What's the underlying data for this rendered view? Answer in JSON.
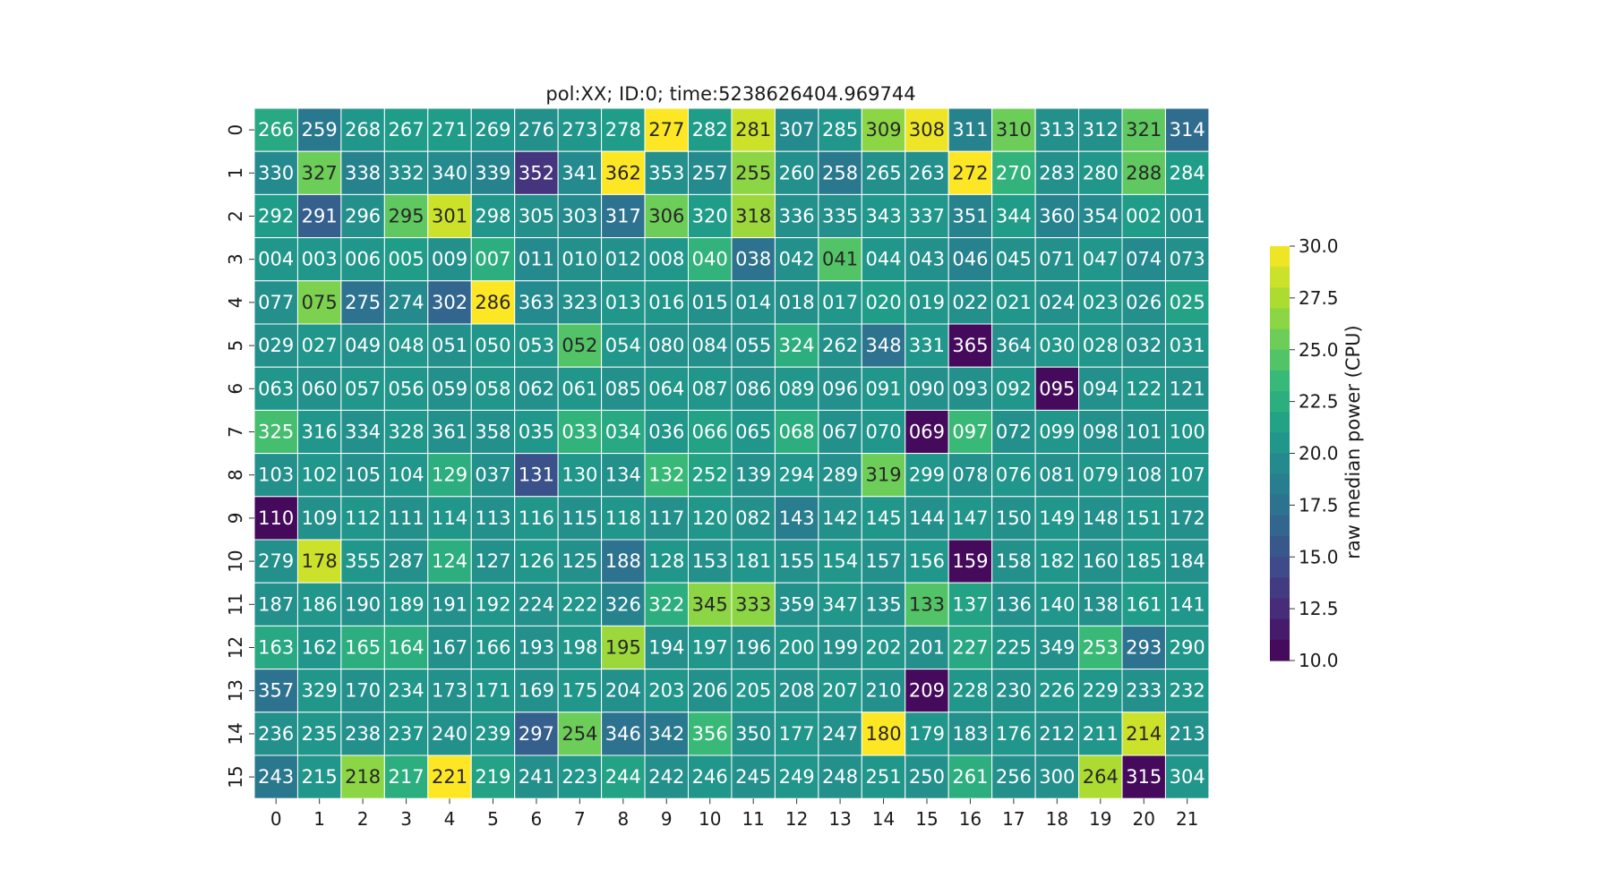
{
  "chart_data": {
    "type": "heatmap",
    "title": "pol:XX; ID:0; time:5238626404.969744",
    "xlabel": "",
    "ylabel": "",
    "x_tick_labels": [
      "0",
      "1",
      "2",
      "3",
      "4",
      "5",
      "6",
      "7",
      "8",
      "9",
      "10",
      "11",
      "12",
      "13",
      "14",
      "15",
      "16",
      "17",
      "18",
      "19",
      "20",
      "21"
    ],
    "y_tick_labels": [
      "0",
      "1",
      "2",
      "3",
      "4",
      "5",
      "6",
      "7",
      "8",
      "9",
      "10",
      "11",
      "12",
      "13",
      "14",
      "15"
    ],
    "annotations": [
      [
        "266",
        "259",
        "268",
        "267",
        "271",
        "269",
        "276",
        "273",
        "278",
        "277",
        "282",
        "281",
        "307",
        "285",
        "309",
        "308",
        "311",
        "310",
        "313",
        "312",
        "321",
        "314"
      ],
      [
        "330",
        "327",
        "338",
        "332",
        "340",
        "339",
        "352",
        "341",
        "362",
        "353",
        "257",
        "255",
        "260",
        "258",
        "265",
        "263",
        "272",
        "270",
        "283",
        "280",
        "288",
        "284"
      ],
      [
        "292",
        "291",
        "296",
        "295",
        "301",
        "298",
        "305",
        "303",
        "317",
        "306",
        "320",
        "318",
        "336",
        "335",
        "343",
        "337",
        "351",
        "344",
        "360",
        "354",
        "002",
        "001"
      ],
      [
        "004",
        "003",
        "006",
        "005",
        "009",
        "007",
        "011",
        "010",
        "012",
        "008",
        "040",
        "038",
        "042",
        "041",
        "044",
        "043",
        "046",
        "045",
        "071",
        "047",
        "074",
        "073"
      ],
      [
        "077",
        "075",
        "275",
        "274",
        "302",
        "286",
        "363",
        "323",
        "013",
        "016",
        "015",
        "014",
        "018",
        "017",
        "020",
        "019",
        "022",
        "021",
        "024",
        "023",
        "026",
        "025"
      ],
      [
        "029",
        "027",
        "049",
        "048",
        "051",
        "050",
        "053",
        "052",
        "054",
        "080",
        "084",
        "055",
        "324",
        "262",
        "348",
        "331",
        "365",
        "364",
        "030",
        "028",
        "032",
        "031"
      ],
      [
        "063",
        "060",
        "057",
        "056",
        "059",
        "058",
        "062",
        "061",
        "085",
        "064",
        "087",
        "086",
        "089",
        "096",
        "091",
        "090",
        "093",
        "092",
        "095",
        "094",
        "122",
        "121"
      ],
      [
        "325",
        "316",
        "334",
        "328",
        "361",
        "358",
        "035",
        "033",
        "034",
        "036",
        "066",
        "065",
        "068",
        "067",
        "070",
        "069",
        "097",
        "072",
        "099",
        "098",
        "101",
        "100"
      ],
      [
        "103",
        "102",
        "105",
        "104",
        "129",
        "037",
        "131",
        "130",
        "134",
        "132",
        "252",
        "139",
        "294",
        "289",
        "319",
        "299",
        "078",
        "076",
        "081",
        "079",
        "108",
        "107"
      ],
      [
        "110",
        "109",
        "112",
        "111",
        "114",
        "113",
        "116",
        "115",
        "118",
        "117",
        "120",
        "082",
        "143",
        "142",
        "145",
        "144",
        "147",
        "150",
        "149",
        "148",
        "151",
        "172"
      ],
      [
        "279",
        "178",
        "355",
        "287",
        "124",
        "127",
        "126",
        "125",
        "188",
        "128",
        "153",
        "181",
        "155",
        "154",
        "157",
        "156",
        "159",
        "158",
        "182",
        "160",
        "185",
        "184"
      ],
      [
        "187",
        "186",
        "190",
        "189",
        "191",
        "192",
        "224",
        "222",
        "326",
        "322",
        "345",
        "333",
        "359",
        "347",
        "135",
        "133",
        "137",
        "136",
        "140",
        "138",
        "161",
        "141"
      ],
      [
        "163",
        "162",
        "165",
        "164",
        "167",
        "166",
        "193",
        "198",
        "195",
        "194",
        "197",
        "196",
        "200",
        "199",
        "202",
        "201",
        "227",
        "225",
        "349",
        "253",
        "293",
        "290"
      ],
      [
        "357",
        "329",
        "170",
        "234",
        "173",
        "171",
        "169",
        "175",
        "204",
        "203",
        "206",
        "205",
        "208",
        "207",
        "210",
        "209",
        "228",
        "230",
        "226",
        "229",
        "233",
        "232"
      ],
      [
        "236",
        "235",
        "238",
        "237",
        "240",
        "239",
        "297",
        "254",
        "346",
        "342",
        "356",
        "350",
        "177",
        "247",
        "180",
        "179",
        "183",
        "176",
        "212",
        "211",
        "214",
        "213"
      ],
      [
        "243",
        "215",
        "218",
        "217",
        "221",
        "219",
        "241",
        "223",
        "244",
        "242",
        "246",
        "245",
        "249",
        "248",
        "251",
        "250",
        "261",
        "256",
        "300",
        "264",
        "315",
        "304"
      ]
    ],
    "values": [
      [
        22.0,
        18.0,
        20.5,
        21.0,
        21.0,
        20.5,
        20.0,
        20.5,
        21.0,
        30.0,
        21.0,
        28.5,
        19.5,
        20.5,
        26.5,
        29.5,
        19.0,
        25.5,
        20.0,
        20.0,
        25.0,
        17.0
      ],
      [
        19.5,
        25.5,
        19.0,
        20.0,
        19.5,
        19.0,
        13.0,
        19.5,
        30.0,
        20.0,
        19.5,
        26.5,
        20.0,
        18.0,
        20.0,
        20.0,
        30.0,
        23.0,
        20.0,
        20.5,
        25.0,
        21.0
      ],
      [
        21.0,
        16.0,
        20.0,
        25.0,
        28.5,
        20.5,
        20.0,
        19.5,
        17.5,
        25.5,
        21.0,
        27.0,
        20.0,
        20.0,
        20.5,
        20.5,
        19.0,
        21.0,
        19.0,
        19.5,
        21.0,
        20.0
      ],
      [
        20.5,
        20.5,
        20.5,
        21.0,
        20.0,
        22.5,
        19.5,
        20.0,
        20.0,
        20.5,
        23.0,
        17.5,
        20.0,
        24.5,
        20.5,
        20.0,
        19.0,
        20.0,
        20.0,
        20.5,
        19.5,
        20.0
      ],
      [
        20.0,
        26.0,
        17.5,
        19.5,
        16.5,
        30.0,
        19.5,
        20.0,
        20.5,
        20.5,
        20.0,
        20.0,
        20.0,
        20.5,
        21.0,
        20.5,
        20.0,
        20.5,
        20.0,
        20.5,
        20.0,
        21.5
      ],
      [
        20.0,
        20.5,
        20.0,
        20.5,
        20.0,
        20.5,
        20.5,
        24.5,
        20.5,
        20.0,
        20.0,
        20.0,
        22.5,
        20.0,
        17.5,
        20.5,
        10.5,
        20.0,
        20.5,
        20.5,
        20.0,
        20.5
      ],
      [
        20.5,
        20.0,
        20.5,
        20.5,
        20.0,
        20.5,
        20.0,
        20.5,
        20.0,
        20.5,
        20.5,
        20.0,
        20.5,
        20.0,
        20.5,
        20.0,
        20.0,
        20.5,
        10.5,
        20.0,
        20.5,
        20.0
      ],
      [
        24.0,
        20.5,
        20.0,
        20.5,
        20.0,
        20.0,
        20.5,
        23.0,
        22.0,
        20.5,
        21.5,
        20.5,
        22.5,
        20.0,
        20.5,
        10.5,
        23.5,
        20.0,
        20.5,
        20.0,
        20.0,
        20.5
      ],
      [
        20.0,
        20.5,
        20.0,
        20.5,
        22.5,
        20.0,
        15.0,
        20.5,
        20.0,
        23.5,
        21.5,
        20.0,
        20.5,
        20.0,
        25.5,
        20.5,
        20.0,
        20.5,
        20.0,
        20.5,
        20.0,
        20.5
      ],
      [
        10.5,
        20.0,
        20.5,
        20.0,
        20.5,
        20.0,
        20.5,
        20.0,
        20.5,
        20.0,
        20.5,
        20.0,
        18.5,
        20.0,
        20.5,
        20.0,
        20.5,
        20.0,
        20.5,
        20.0,
        20.5,
        20.0
      ],
      [
        20.0,
        28.5,
        20.5,
        20.0,
        22.5,
        20.0,
        20.5,
        20.0,
        17.5,
        20.5,
        20.0,
        20.5,
        20.0,
        20.5,
        20.0,
        20.5,
        10.5,
        20.0,
        20.5,
        20.0,
        20.5,
        20.0
      ],
      [
        20.0,
        20.5,
        20.0,
        20.5,
        20.0,
        20.5,
        20.0,
        20.5,
        19.0,
        22.5,
        26.5,
        26.5,
        20.0,
        20.5,
        20.0,
        24.5,
        21.5,
        20.0,
        20.5,
        20.0,
        21.0,
        20.5
      ],
      [
        22.0,
        20.5,
        22.5,
        22.5,
        20.0,
        20.5,
        20.0,
        20.5,
        27.0,
        20.0,
        20.5,
        20.0,
        20.5,
        20.0,
        20.5,
        20.0,
        22.0,
        20.5,
        20.0,
        23.5,
        17.5,
        20.5
      ],
      [
        17.5,
        20.5,
        20.0,
        20.5,
        20.0,
        20.5,
        20.0,
        20.5,
        20.0,
        20.5,
        20.0,
        20.5,
        20.0,
        20.5,
        20.0,
        10.5,
        20.5,
        20.0,
        20.5,
        20.5,
        20.0,
        20.5
      ],
      [
        20.0,
        20.5,
        20.0,
        20.5,
        20.0,
        20.5,
        16.0,
        25.5,
        17.5,
        18.0,
        23.5,
        20.0,
        20.5,
        20.0,
        30.0,
        20.5,
        20.0,
        20.5,
        20.0,
        20.5,
        28.5,
        20.0
      ],
      [
        18.0,
        20.5,
        26.5,
        22.5,
        30.0,
        21.5,
        20.0,
        20.5,
        21.5,
        20.0,
        20.5,
        20.0,
        20.5,
        20.0,
        20.5,
        20.0,
        22.5,
        20.0,
        20.0,
        27.5,
        10.5,
        20.5
      ]
    ],
    "colorbar": {
      "label": "raw median power (CPU)",
      "min": 10.0,
      "max": 30.0,
      "tick_labels": [
        "10.0",
        "12.5",
        "15.0",
        "17.5",
        "20.0",
        "22.5",
        "25.0",
        "27.5",
        "30.0"
      ],
      "colormap": "viridis"
    },
    "grid": false,
    "cell_border_color": "#ffffff"
  }
}
